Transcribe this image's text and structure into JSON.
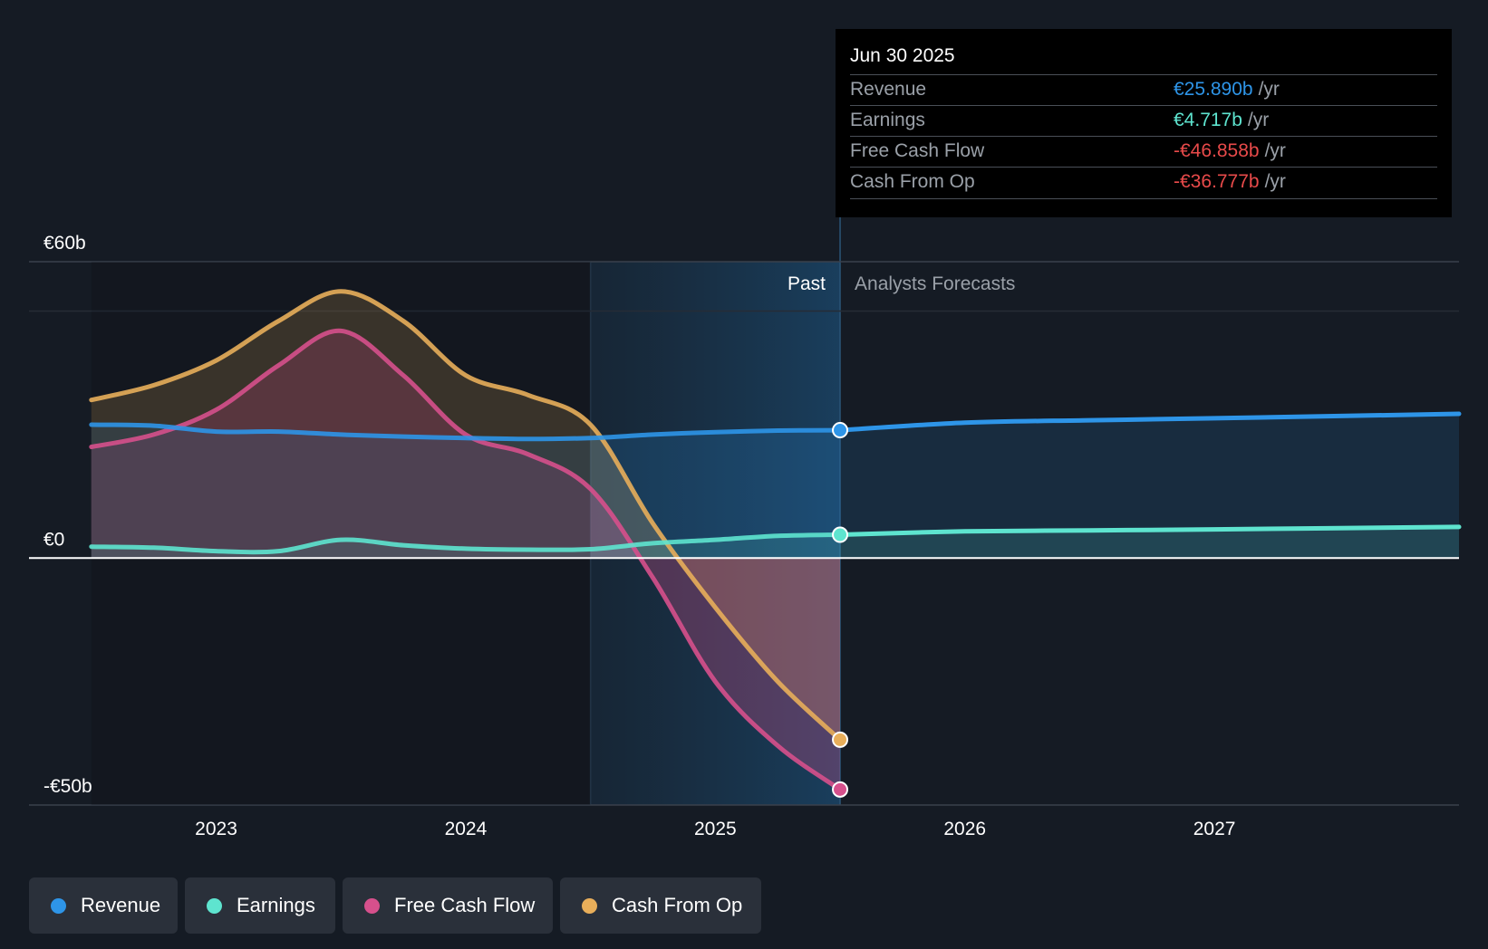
{
  "chart_data": {
    "type": "line",
    "x_ticks": [
      2023,
      2024,
      2025,
      2026,
      2027
    ],
    "y_tick_labels": [
      {
        "value": 60,
        "label": "€60b"
      },
      {
        "value": 0,
        "label": "€0"
      },
      {
        "value": -50,
        "label": "-€50b"
      }
    ],
    "ylim": [
      -50,
      60
    ],
    "xlim": [
      2022.25,
      2027.98
    ],
    "divider_x": 2025.5,
    "past_region_start": 2024.5,
    "past_label": "Past",
    "forecast_label": "Analysts Forecasts",
    "series": [
      {
        "name": "Revenue",
        "color": "#2e95e8",
        "points": [
          [
            2022.5,
            27
          ],
          [
            2022.75,
            26.8
          ],
          [
            2023.0,
            25.6
          ],
          [
            2023.25,
            25.6
          ],
          [
            2023.5,
            25
          ],
          [
            2023.75,
            24.6
          ],
          [
            2024.0,
            24.3
          ],
          [
            2024.25,
            24.1
          ],
          [
            2024.5,
            24.3
          ],
          [
            2024.75,
            25
          ],
          [
            2025.0,
            25.5
          ],
          [
            2025.25,
            25.8
          ],
          [
            2025.5,
            25.89
          ]
        ],
        "forecast": [
          [
            2025.5,
            25.89
          ],
          [
            2026.0,
            27.4
          ],
          [
            2026.5,
            27.9
          ],
          [
            2027.0,
            28.3
          ],
          [
            2027.98,
            29.2
          ]
        ]
      },
      {
        "name": "Earnings",
        "color": "#5ee4cf",
        "points": [
          [
            2022.5,
            2.3
          ],
          [
            2022.75,
            2.1
          ],
          [
            2023.0,
            1.4
          ],
          [
            2023.25,
            1.4
          ],
          [
            2023.5,
            3.7
          ],
          [
            2023.75,
            2.6
          ],
          [
            2024.0,
            1.9
          ],
          [
            2024.25,
            1.7
          ],
          [
            2024.5,
            1.8
          ],
          [
            2024.75,
            3
          ],
          [
            2025.0,
            3.7
          ],
          [
            2025.25,
            4.5
          ],
          [
            2025.5,
            4.717
          ]
        ],
        "forecast": [
          [
            2025.5,
            4.717
          ],
          [
            2026.0,
            5.4
          ],
          [
            2026.5,
            5.6
          ],
          [
            2027.0,
            5.8
          ],
          [
            2027.98,
            6.3
          ]
        ]
      },
      {
        "name": "Free Cash Flow",
        "color": "#d6508c",
        "points": [
          [
            2022.5,
            22.5
          ],
          [
            2022.75,
            25
          ],
          [
            2023.0,
            30
          ],
          [
            2023.25,
            39
          ],
          [
            2023.5,
            46
          ],
          [
            2023.75,
            37
          ],
          [
            2024.0,
            25
          ],
          [
            2024.25,
            21
          ],
          [
            2024.5,
            14
          ],
          [
            2024.75,
            -4
          ],
          [
            2025.0,
            -25
          ],
          [
            2025.25,
            -38
          ],
          [
            2025.5,
            -46.858
          ]
        ],
        "forecast": []
      },
      {
        "name": "Cash From Op",
        "color": "#e8ae5a",
        "points": [
          [
            2022.5,
            32
          ],
          [
            2022.75,
            35
          ],
          [
            2023.0,
            40
          ],
          [
            2023.25,
            48
          ],
          [
            2023.5,
            54
          ],
          [
            2023.75,
            48
          ],
          [
            2024.0,
            37
          ],
          [
            2024.25,
            33
          ],
          [
            2024.5,
            27
          ],
          [
            2024.75,
            7
          ],
          [
            2025.0,
            -10
          ],
          [
            2025.25,
            -25
          ],
          [
            2025.5,
            -36.777
          ]
        ],
        "forecast": []
      }
    ]
  },
  "tooltip": {
    "date": "Jun 30 2025",
    "rows": [
      {
        "label": "Revenue",
        "value": "€25.890b",
        "unit": "/yr",
        "color": "#2e95e8"
      },
      {
        "label": "Earnings",
        "value": "€4.717b",
        "unit": "/yr",
        "color": "#5ee4cf"
      },
      {
        "label": "Free Cash Flow",
        "value": "-€46.858b",
        "unit": "/yr",
        "color": "#e84a4a"
      },
      {
        "label": "Cash From Op",
        "value": "-€36.777b",
        "unit": "/yr",
        "color": "#e84a4a"
      }
    ]
  },
  "legend": [
    {
      "label": "Revenue",
      "color": "#2e95e8"
    },
    {
      "label": "Earnings",
      "color": "#5ee4cf"
    },
    {
      "label": "Free Cash Flow",
      "color": "#d6508c"
    },
    {
      "label": "Cash From Op",
      "color": "#e8ae5a"
    }
  ]
}
